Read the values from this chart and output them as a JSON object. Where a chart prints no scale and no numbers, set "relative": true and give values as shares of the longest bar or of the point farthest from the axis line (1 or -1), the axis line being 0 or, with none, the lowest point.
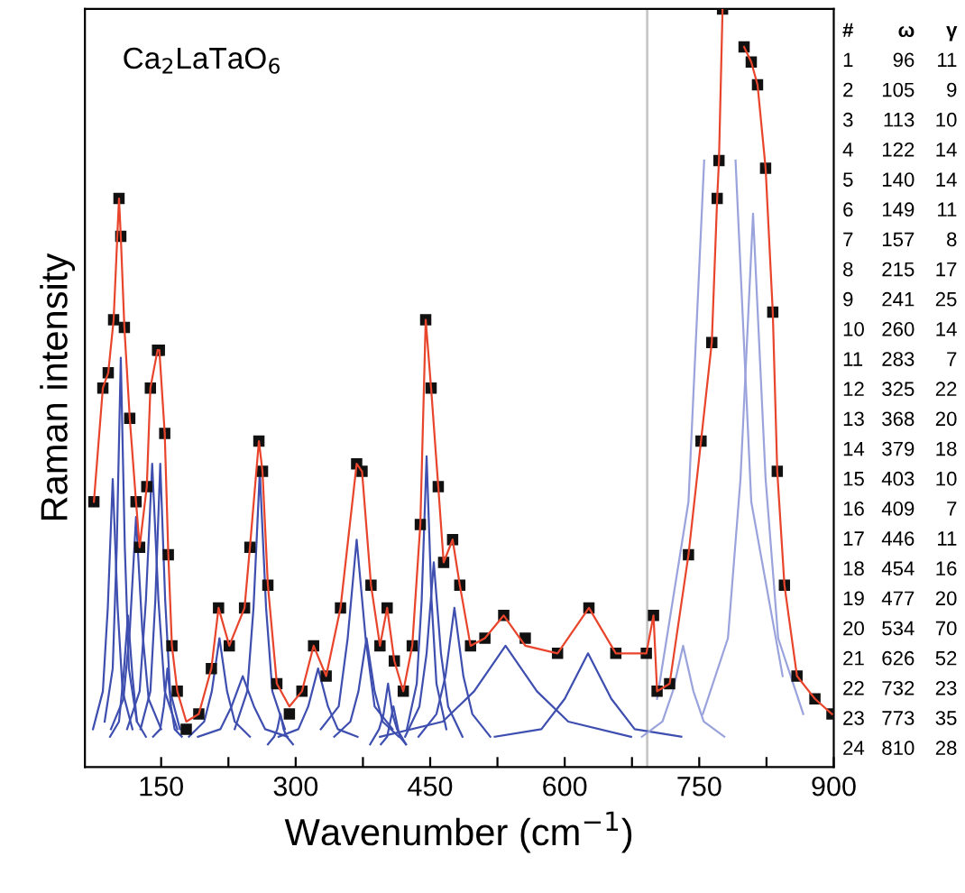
{
  "chart_data": {
    "type": "line",
    "relative": true,
    "title": "Ca$_{2}$LaTaO$_{6}$",
    "xlabel": "Wavenumber (cm$^{−1}$)",
    "ylabel": "Raman intensity",
    "xlim": [
      65,
      900
    ],
    "xticks": [
      150,
      {
        "value": 225,
        "label": null
      },
      300,
      {
        "value": 375,
        "label": null
      },
      450,
      {
        "value": 525,
        "label": null
      },
      600,
      {
        "value": 675,
        "label": null
      },
      750,
      {
        "value": 825,
        "label": null
      },
      900
    ],
    "legend": false,
    "grid": false,
    "ref_lines": [
      {
        "axis": "x",
        "value": 692,
        "color": "#c8c8c8"
      }
    ],
    "annotations": [
      "# ω γ",
      "1 96 11",
      "2 105 9",
      "3 113 10",
      "4 122 14",
      "5 140 14",
      "6 149 11",
      "7 157 8",
      "8 215 17",
      "9 241 25",
      "10 260 14",
      "11 283 7",
      "12 325 22",
      "13 368 20",
      "14 379 18",
      "15 403 10",
      "16 409 7",
      "17 446 11",
      "18 454 16",
      "19 477 20",
      "20 534 70",
      "21 626 52",
      "22 732 23",
      "23 773 35",
      "24 810 28"
    ],
    "series": [
      {
        "type": "line",
        "color": "#3f4fb0",
        "x": [
          74,
          85,
          90.5,
          96,
          101.5,
          107,
          118
        ],
        "values": [
          0.05,
          0.1,
          0.21,
          0.38,
          0.21,
          0.1,
          0.05
        ]
      },
      {
        "type": "line",
        "color": "#3f4fb0",
        "x": [
          87,
          96,
          100.5,
          105,
          109.5,
          114,
          123
        ],
        "values": [
          0.06,
          0.13,
          0.29,
          0.54,
          0.29,
          0.13,
          0.06
        ]
      },
      {
        "type": "line",
        "color": "#3f4fb0",
        "x": [
          93,
          103,
          108,
          113,
          118,
          123,
          133
        ],
        "values": [
          0.04,
          0.06,
          0.12,
          0.2,
          0.12,
          0.06,
          0.04
        ]
      },
      {
        "type": "line",
        "color": "#3f4fb0",
        "x": [
          94,
          108,
          115,
          122,
          129,
          136,
          150
        ],
        "values": [
          0.05,
          0.09,
          0.18,
          0.33,
          0.18,
          0.09,
          0.05
        ]
      },
      {
        "type": "line",
        "color": "#3f4fb0",
        "x": [
          112,
          126,
          133,
          140,
          147,
          154,
          168
        ],
        "values": [
          0.05,
          0.1,
          0.22,
          0.4,
          0.22,
          0.1,
          0.05
        ]
      },
      {
        "type": "line",
        "color": "#3f4fb0",
        "x": [
          127,
          138,
          143.5,
          149,
          154.5,
          160,
          171
        ],
        "values": [
          0.05,
          0.1,
          0.22,
          0.4,
          0.22,
          0.1,
          0.05
        ]
      },
      {
        "type": "line",
        "color": "#3f4fb0",
        "x": [
          141,
          149,
          153,
          157,
          161,
          165,
          173
        ],
        "values": [
          0.04,
          0.05,
          0.08,
          0.13,
          0.08,
          0.05,
          0.04
        ]
      },
      {
        "type": "line",
        "color": "#3f4fb0",
        "x": [
          181,
          198,
          206.5,
          215,
          223.5,
          232,
          249
        ],
        "values": [
          0.04,
          0.06,
          0.1,
          0.17,
          0.1,
          0.06,
          0.04
        ]
      },
      {
        "type": "line",
        "color": "#3f4fb0",
        "x": [
          191,
          216,
          228.5,
          241,
          253.5,
          266,
          291
        ],
        "values": [
          0.04,
          0.05,
          0.08,
          0.12,
          0.08,
          0.05,
          0.04
        ]
      },
      {
        "type": "line",
        "color": "#3f4fb0",
        "x": [
          232,
          246,
          253,
          260,
          267,
          274,
          288
        ],
        "values": [
          0.05,
          0.1,
          0.21,
          0.39,
          0.21,
          0.1,
          0.05
        ]
      },
      {
        "type": "line",
        "color": "#3f4fb0",
        "x": [
          269,
          276,
          279.5,
          283,
          286.5,
          290,
          297
        ],
        "values": [
          0.03,
          0.04,
          0.05,
          0.07,
          0.05,
          0.04,
          0.03
        ]
      },
      {
        "type": "line",
        "color": "#3f4fb0",
        "x": [
          281,
          303,
          314,
          325,
          336,
          347,
          369
        ],
        "values": [
          0.04,
          0.05,
          0.08,
          0.13,
          0.08,
          0.05,
          0.04
        ]
      },
      {
        "type": "line",
        "color": "#3f4fb0",
        "x": [
          328,
          348,
          358,
          368,
          378,
          388,
          408
        ],
        "values": [
          0.05,
          0.08,
          0.17,
          0.3,
          0.17,
          0.08,
          0.05
        ]
      },
      {
        "type": "line",
        "color": "#3f4fb0",
        "x": [
          343,
          361,
          370,
          379,
          388,
          397,
          415
        ],
        "values": [
          0.04,
          0.06,
          0.1,
          0.17,
          0.1,
          0.06,
          0.04
        ]
      },
      {
        "type": "line",
        "color": "#3f4fb0",
        "x": [
          383,
          393,
          398,
          403,
          408,
          413,
          423
        ],
        "values": [
          0.03,
          0.05,
          0.07,
          0.11,
          0.07,
          0.05,
          0.03
        ]
      },
      {
        "type": "line",
        "color": "#3f4fb0",
        "x": [
          395,
          402,
          405.5,
          409,
          412.5,
          416,
          423
        ],
        "values": [
          0.03,
          0.04,
          0.06,
          0.08,
          0.06,
          0.04,
          0.03
        ]
      },
      {
        "type": "line",
        "color": "#3f4fb0",
        "x": [
          424,
          435,
          440.5,
          446,
          451.5,
          457,
          468
        ],
        "values": [
          0.05,
          0.11,
          0.22,
          0.41,
          0.22,
          0.11,
          0.05
        ]
      },
      {
        "type": "line",
        "color": "#3f4fb0",
        "x": [
          422,
          438,
          446,
          454,
          462,
          470,
          486
        ],
        "values": [
          0.04,
          0.08,
          0.15,
          0.27,
          0.15,
          0.08,
          0.04
        ]
      },
      {
        "type": "line",
        "color": "#3f4fb0",
        "x": [
          437,
          457,
          467,
          477,
          487,
          497,
          517
        ],
        "values": [
          0.04,
          0.07,
          0.12,
          0.21,
          0.12,
          0.07,
          0.04
        ]
      },
      {
        "type": "line",
        "color": "#3f4fb0",
        "x": [
          394,
          464,
          499,
          534,
          569,
          604,
          674
        ],
        "values": [
          0.04,
          0.06,
          0.1,
          0.16,
          0.1,
          0.06,
          0.04
        ]
      },
      {
        "type": "line",
        "color": "#3f4fb0",
        "x": [
          522,
          574,
          600,
          626,
          652,
          678,
          730
        ],
        "values": [
          0.04,
          0.05,
          0.09,
          0.15,
          0.09,
          0.05,
          0.04
        ]
      },
      {
        "type": "line",
        "color": "#9aa3dc",
        "x": [
          686,
          709,
          720.5,
          732,
          743.5,
          755,
          778
        ],
        "values": [
          0.04,
          0.06,
          0.1,
          0.16,
          0.1,
          0.06,
          0.04
        ]
      },
      {
        "type": "line",
        "color": "#9aa3dc",
        "x": [
          703,
          738,
          755.5,
          773,
          790.5,
          808,
          843
        ],
        "values": [
          0.09,
          0.35,
          0.8,
          null,
          0.8,
          0.35,
          0.12
        ]
      },
      {
        "type": "line",
        "color": "#9aa3dc",
        "x": [
          754,
          782,
          796,
          810,
          824,
          838,
          866
        ],
        "values": [
          0.07,
          0.17,
          0.38,
          0.73,
          0.38,
          0.17,
          0.07
        ]
      },
      {
        "type": "scatter",
        "color": "#111111",
        "marker": "square",
        "x": [
          75,
          85,
          91,
          97,
          103,
          105,
          109,
          115,
          122,
          126,
          134,
          138,
          146,
          148,
          154,
          158,
          162,
          168,
          178,
          192,
          206,
          214,
          226,
          243,
          249,
          259,
          263,
          269,
          279,
          293,
          307,
          320,
          334,
          350,
          368,
          374,
          384,
          394,
          402,
          410,
          420,
          430,
          439,
          445,
          451,
          459,
          465,
          475,
          483,
          495,
          511,
          532,
          556,
          592,
          627,
          657,
          691,
          699,
          703,
          717,
          738,
          752,
          764,
          770,
          772,
          776,
          790,
          800,
          808,
          815,
          824,
          832,
          837,
          845,
          859,
          879,
          898
        ],
        "values": [
          0.35,
          0.5,
          0.52,
          0.59,
          0.75,
          0.7,
          0.58,
          0.46,
          0.35,
          0.29,
          0.37,
          0.5,
          0.55,
          0.55,
          0.44,
          0.28,
          0.16,
          0.1,
          0.05,
          0.07,
          0.13,
          0.21,
          0.16,
          0.21,
          0.29,
          0.43,
          0.39,
          0.24,
          0.11,
          0.07,
          0.1,
          0.16,
          0.12,
          0.21,
          0.4,
          0.39,
          0.24,
          0.16,
          0.21,
          0.14,
          0.1,
          0.16,
          0.32,
          0.59,
          0.5,
          0.37,
          0.27,
          0.3,
          0.24,
          0.16,
          0.17,
          0.2,
          0.17,
          0.15,
          0.21,
          0.15,
          0.15,
          0.2,
          0.1,
          0.11,
          0.28,
          0.43,
          0.56,
          0.75,
          0.8,
          1.0,
          null,
          0.95,
          0.93,
          0.9,
          0.79,
          0.6,
          0.39,
          0.24,
          0.12,
          0.09,
          0.07
        ]
      },
      {
        "color": "#e8452c",
        "x": [
          75,
          85,
          91,
          97,
          103,
          105,
          109,
          115,
          122,
          126,
          134,
          138,
          146,
          148,
          154,
          158,
          162,
          168,
          178,
          192,
          206,
          214,
          226,
          243,
          249,
          259,
          263,
          269,
          279,
          293,
          307,
          320,
          334,
          350,
          368,
          374,
          384,
          394,
          402,
          410,
          420,
          430,
          439,
          445,
          451,
          459,
          465,
          475,
          483,
          495,
          511,
          532,
          556,
          592,
          627,
          657,
          691,
          699,
          703,
          717,
          738,
          752,
          764,
          770,
          772,
          776,
          790,
          800,
          808,
          815,
          824,
          832,
          837,
          845,
          859,
          879,
          898
        ],
        "values": [
          0.35,
          0.5,
          0.52,
          0.59,
          0.75,
          0.7,
          0.58,
          0.46,
          0.35,
          0.29,
          0.37,
          0.5,
          0.55,
          0.55,
          0.44,
          0.28,
          0.16,
          0.1,
          0.06,
          0.07,
          0.13,
          0.21,
          0.16,
          0.21,
          0.29,
          0.43,
          0.39,
          0.24,
          0.11,
          0.08,
          0.1,
          0.16,
          0.12,
          0.21,
          0.4,
          0.39,
          0.24,
          0.16,
          0.21,
          0.14,
          0.1,
          0.16,
          0.32,
          0.59,
          0.5,
          0.37,
          0.27,
          0.3,
          0.24,
          0.16,
          0.17,
          0.2,
          0.16,
          0.15,
          0.21,
          0.15,
          0.15,
          0.2,
          0.1,
          0.11,
          0.28,
          0.43,
          0.56,
          0.75,
          0.8,
          1.0,
          null,
          0.95,
          0.93,
          0.9,
          0.79,
          0.6,
          0.39,
          0.24,
          0.12,
          0.09,
          0.07
        ]
      }
    ]
  }
}
